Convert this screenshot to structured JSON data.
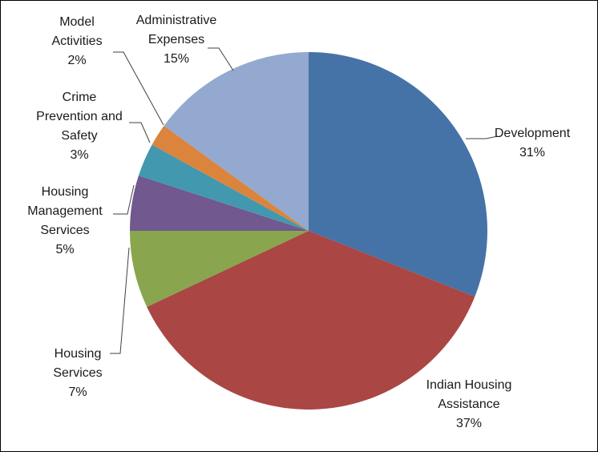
{
  "chart_data": {
    "type": "pie",
    "title": "",
    "start_angle_deg": 90,
    "direction": "clockwise",
    "legend": "none",
    "slices": [
      {
        "name": "Development",
        "value": 31,
        "label_lines": [
          "Development",
          "31%"
        ],
        "color": "#4573a7"
      },
      {
        "name": "Indian Housing Assistance",
        "value": 37,
        "label_lines": [
          "Indian Housing",
          "Assistance",
          "37%"
        ],
        "color": "#aa4644"
      },
      {
        "name": "Housing Services",
        "value": 7,
        "label_lines": [
          "Housing",
          "Services",
          "7%"
        ],
        "color": "#89a54e"
      },
      {
        "name": "Housing Management Services",
        "value": 5,
        "label_lines": [
          "Housing",
          "Management",
          "Services",
          "5%"
        ],
        "color": "#71588f"
      },
      {
        "name": "Crime Prevention and Safety",
        "value": 3,
        "label_lines": [
          "Crime",
          "Prevention and",
          "Safety",
          "3%"
        ],
        "color": "#4298af"
      },
      {
        "name": "Model Activities",
        "value": 2,
        "label_lines": [
          "Model",
          "Activities",
          "2%"
        ],
        "color": "#db843d"
      },
      {
        "name": "Administrative Expenses",
        "value": 15,
        "label_lines": [
          "Administrative",
          "Expenses",
          "15%"
        ],
        "color": "#93a9cf"
      }
    ]
  }
}
